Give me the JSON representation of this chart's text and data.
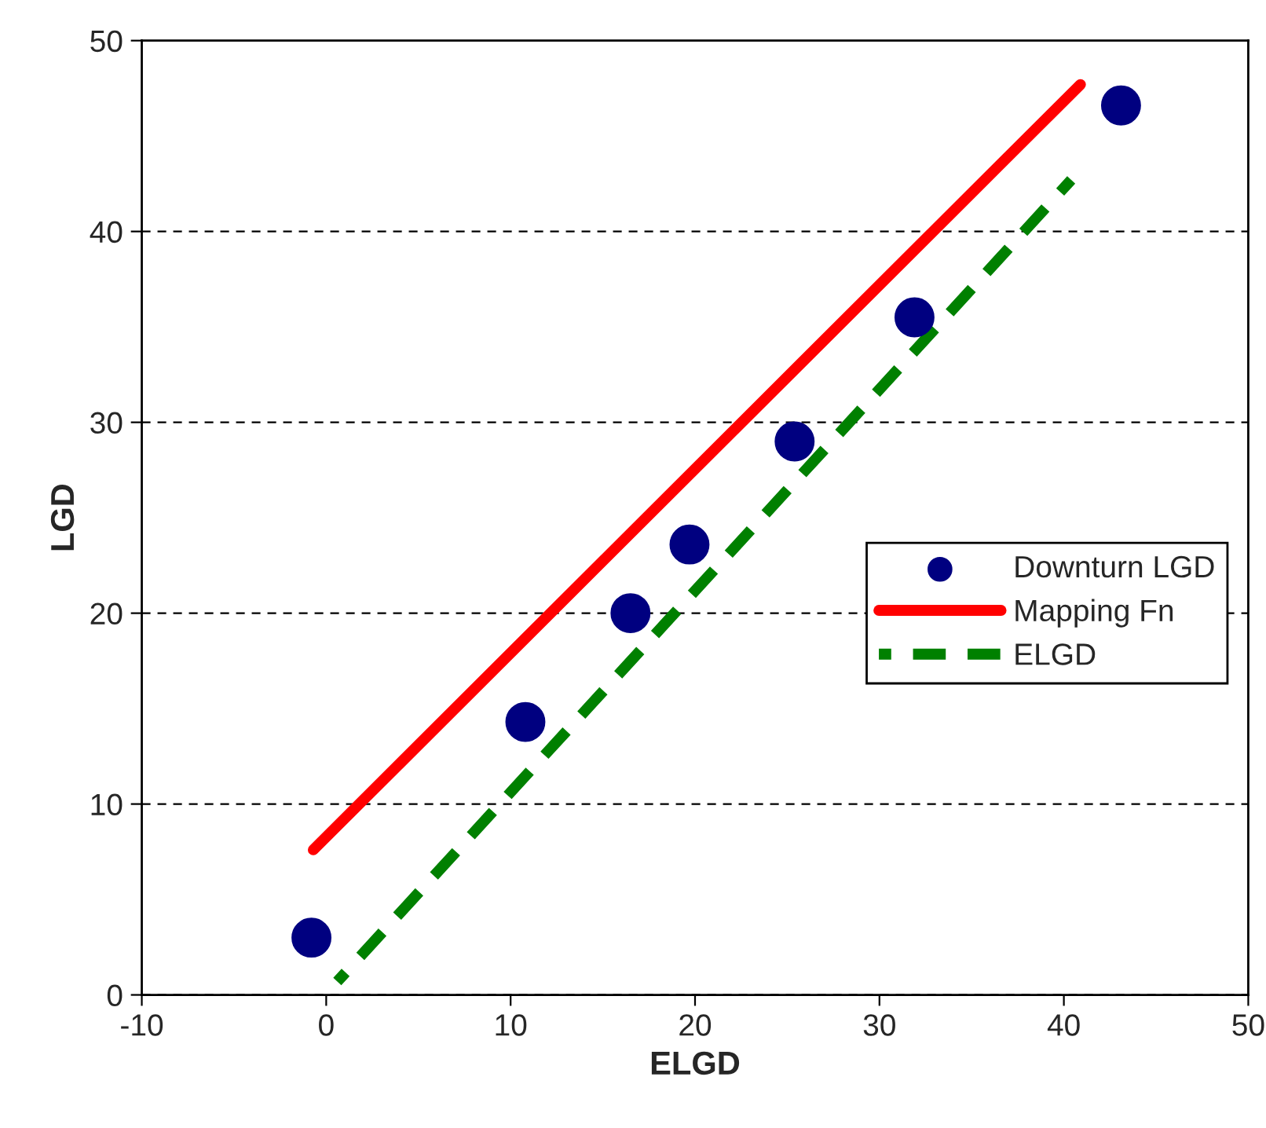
{
  "chart_data": {
    "type": "scatter",
    "xlabel": "ELGD",
    "ylabel": "LGD",
    "series": [
      {
        "name": "Downturn LGD",
        "color": "#000080",
        "marker": "circle",
        "x": [
          -0.8,
          10.8,
          16.5,
          19.7,
          25.4,
          31.9,
          43.1
        ],
        "values": [
          3.0,
          14.3,
          20.0,
          23.6,
          29.0,
          35.5,
          46.6
        ]
      },
      {
        "name": "Mapping Fn",
        "type": "line",
        "color": "#ff0000",
        "line_style": "solid",
        "x": [
          -0.7,
          40.9
        ],
        "values": [
          7.6,
          47.7
        ]
      },
      {
        "name": "ELGD",
        "type": "line",
        "color": "#008000",
        "line_style": "dashed",
        "x": [
          0.6,
          40.4
        ],
        "values": [
          0.7,
          42.7
        ]
      }
    ],
    "xlim": [
      -10,
      50
    ],
    "xticks": [
      -10,
      0,
      10,
      20,
      30,
      40,
      50
    ],
    "ylim": [
      0,
      50
    ],
    "yticks": [
      0,
      10,
      20,
      30,
      40,
      50
    ],
    "grid": "y",
    "legend": "right"
  }
}
